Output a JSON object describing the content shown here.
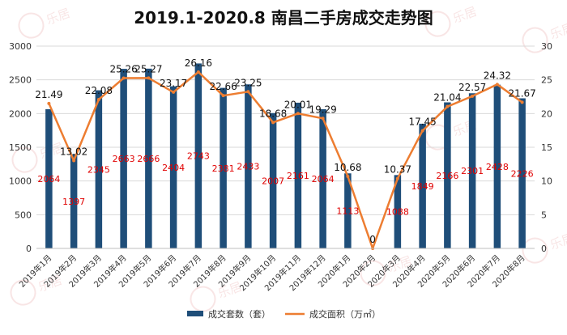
{
  "chart_data": {
    "type": "bar",
    "title": "2019.1-2020.8 南昌二手房成交走势图",
    "categories": [
      "2019年1月",
      "2019年2月",
      "2019年3月",
      "2019年4月",
      "2019年5月",
      "2019年6月",
      "2019年7月",
      "2019年8月",
      "2019年9月",
      "2019年10月",
      "2019年11月",
      "2019年12月",
      "2020年1月",
      "2020年2月",
      "2020年3月",
      "2020年4月",
      "2020年5月",
      "2020年6月",
      "2020年7月",
      "2020年8月"
    ],
    "series": [
      {
        "name": "成交套数（套）",
        "kind": "bar",
        "axis": "left",
        "color": "#1f4e79",
        "values": [
          2064,
          1397,
          2345,
          2663,
          2666,
          2404,
          2743,
          2381,
          2433,
          2007,
          2161,
          2064,
          1113,
          0,
          1088,
          1849,
          2166,
          2301,
          2428,
          2226
        ],
        "labels": [
          "2064",
          "1397",
          "2345",
          "2663",
          "2666",
          "2404",
          "2743",
          "2381",
          "2433",
          "2007",
          "2161",
          "2064",
          "1113",
          "",
          "1088",
          "1849",
          "2166",
          "2301",
          "2428",
          "2226"
        ]
      },
      {
        "name": "成交面积（万㎡）",
        "kind": "line",
        "axis": "right",
        "color": "#ed7d31",
        "values": [
          21.49,
          13.02,
          22.08,
          25.26,
          25.27,
          23.17,
          26.16,
          22.66,
          23.25,
          18.68,
          20.01,
          19.29,
          10.68,
          0,
          10.37,
          17.45,
          21.04,
          22.57,
          24.32,
          21.67
        ],
        "labels": [
          "21.49",
          "13.02",
          "22.08",
          "25.26",
          "25.27",
          "23.17",
          "26.16",
          "22.66",
          "23.25",
          "18.68",
          "20.01",
          "19.29",
          "10.68",
          "0",
          "10.37",
          "17.45",
          "21.04",
          "22.57",
          "24.32",
          "21.67"
        ]
      }
    ],
    "y_left": {
      "min": 0,
      "max": 3000,
      "ticks": [
        "0",
        "500",
        "1000",
        "1500",
        "2000",
        "2500",
        "3000"
      ]
    },
    "y_right": {
      "min": 0,
      "max": 30,
      "ticks": [
        "0",
        "5",
        "10",
        "15",
        "20",
        "25",
        "30"
      ]
    },
    "grid": true,
    "legend": "bottom-center"
  },
  "watermark": "乐居"
}
